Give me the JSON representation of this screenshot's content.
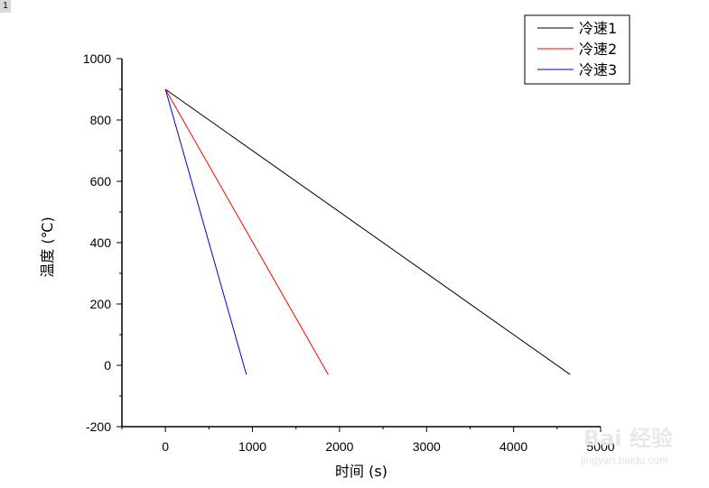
{
  "page": {
    "corner_tag": "1"
  },
  "watermark": {
    "text": "Bai 经验",
    "url": "jingyan.baidu.com"
  },
  "chart_data": {
    "type": "line",
    "title": "",
    "xlabel": "时间 (s)",
    "ylabel": "温度 (℃)",
    "xlim": [
      -500,
      5000
    ],
    "ylim": [
      -200,
      1000
    ],
    "x_ticks": [
      0,
      1000,
      2000,
      3000,
      4000,
      5000
    ],
    "y_ticks": [
      -200,
      0,
      200,
      400,
      600,
      800,
      1000
    ],
    "x_tick_labels": [
      "0",
      "1000",
      "2000",
      "3000",
      "4000",
      "5000"
    ],
    "y_tick_labels": [
      "-200",
      "0",
      "200",
      "400",
      "600",
      "800",
      "1000"
    ],
    "grid": false,
    "legend_position": "top-right",
    "series": [
      {
        "name": "冷速1",
        "color": "#000000",
        "x": [
          0,
          4650
        ],
        "y": [
          900,
          -30
        ]
      },
      {
        "name": "冷速2",
        "color": "#ff0000",
        "x": [
          0,
          1870
        ],
        "y": [
          900,
          -30
        ]
      },
      {
        "name": "冷速3",
        "color": "#0000cc",
        "x": [
          0,
          930
        ],
        "y": [
          900,
          -30
        ]
      }
    ]
  }
}
